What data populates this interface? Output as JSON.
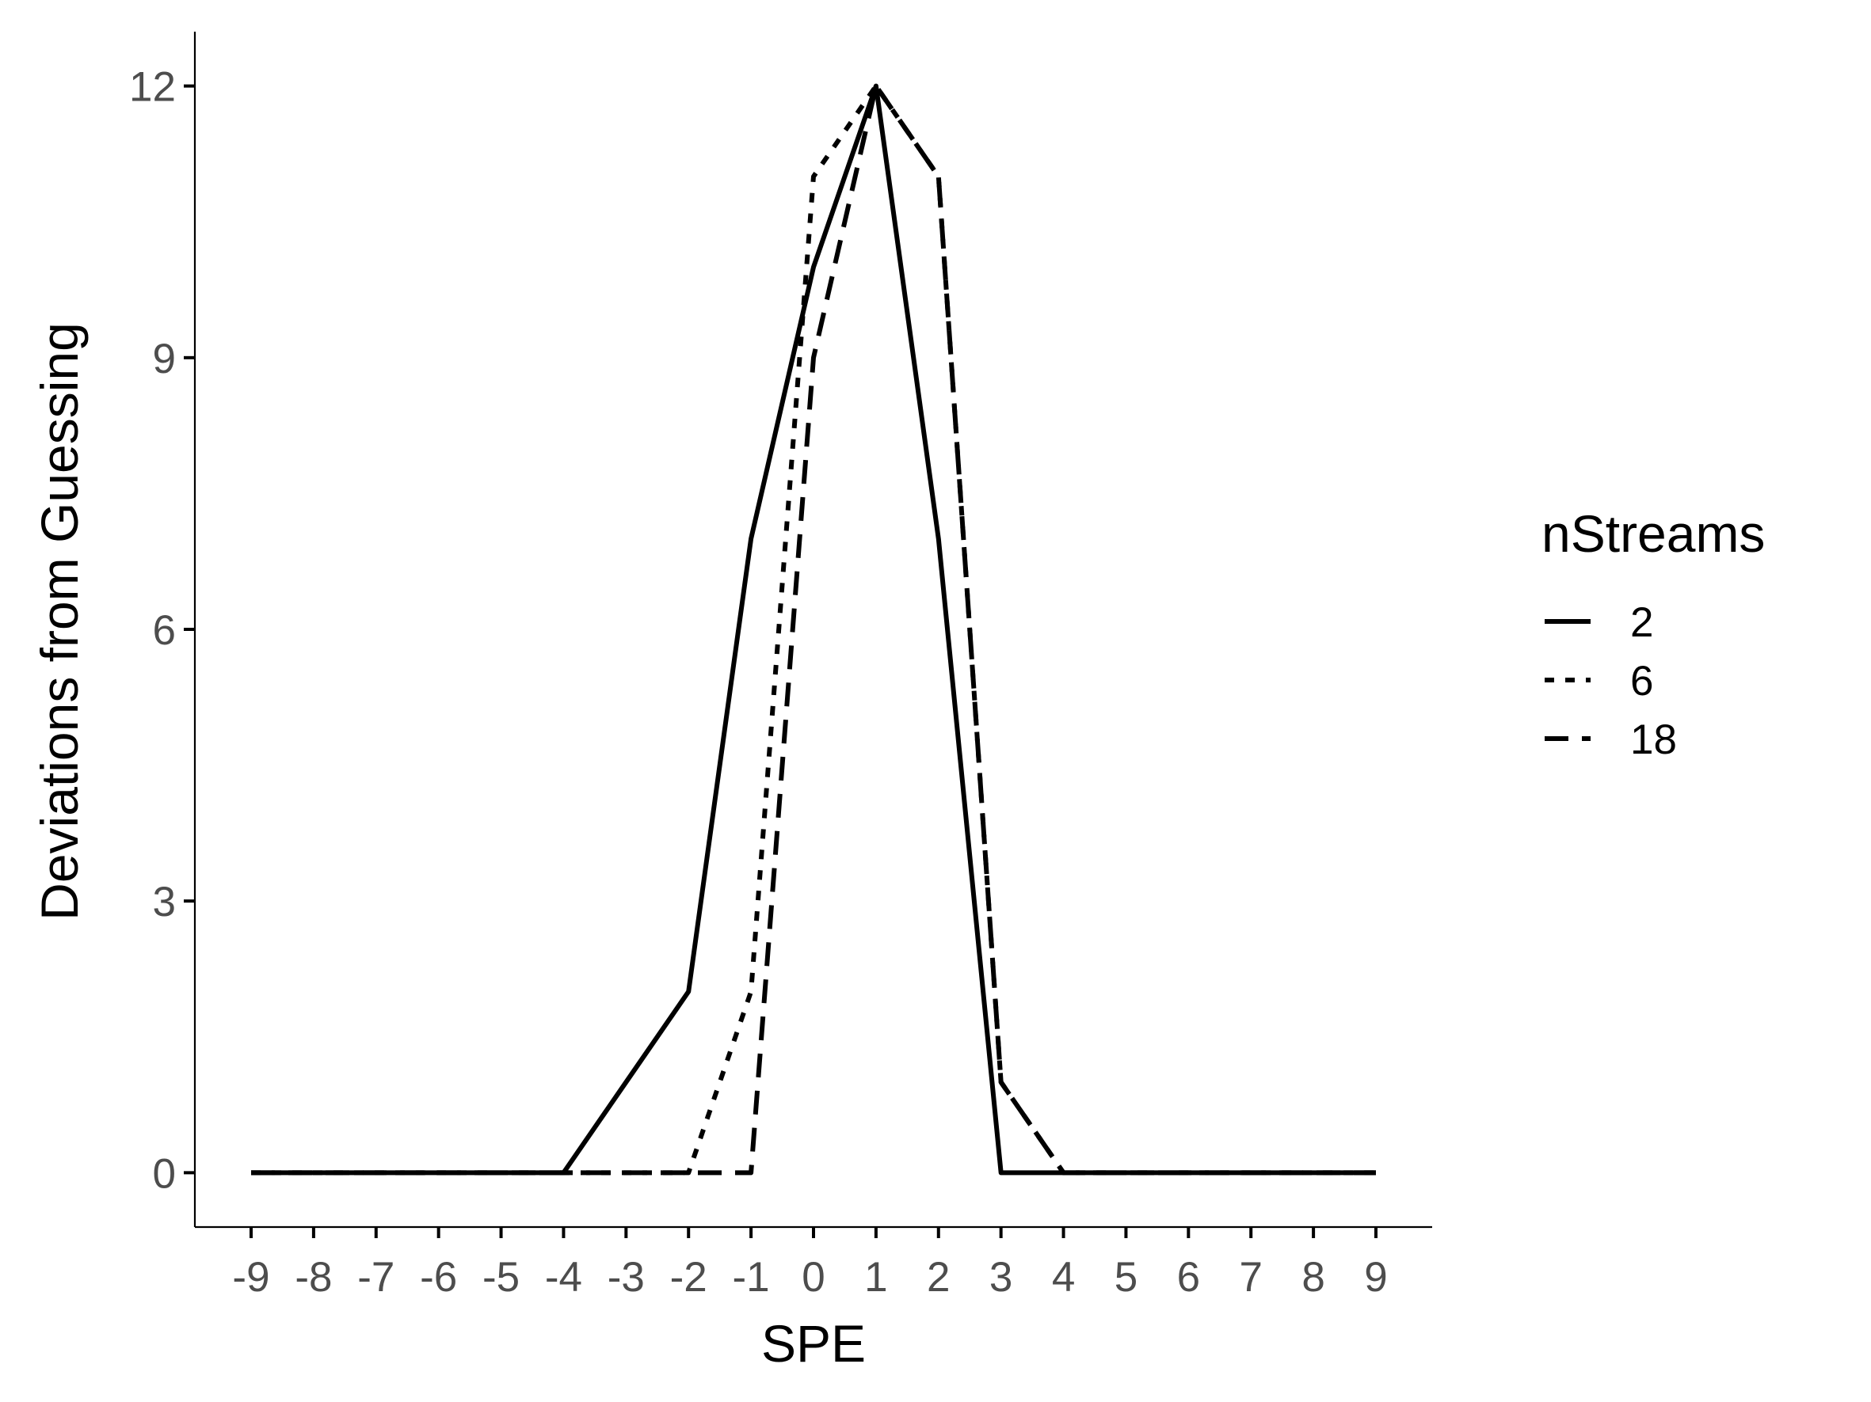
{
  "chart_data": {
    "type": "line",
    "xlabel": "SPE",
    "ylabel": "Deviations from Guessing",
    "x": [
      -9,
      -8,
      -7,
      -6,
      -5,
      -4,
      -3,
      -2,
      -1,
      0,
      1,
      2,
      3,
      4,
      5,
      6,
      7,
      8,
      9
    ],
    "x_tick_labels": [
      "-9",
      "-8",
      "-7",
      "-6",
      "-5",
      "-4",
      "-3",
      "-2",
      "-1",
      "0",
      "1",
      "2",
      "3",
      "4",
      "5",
      "6",
      "7",
      "8",
      "9"
    ],
    "y_ticks": [
      0,
      3,
      6,
      9,
      12
    ],
    "y_tick_labels": [
      "0",
      "3",
      "6",
      "9",
      "12"
    ],
    "xlim": [
      -9.9,
      9.9
    ],
    "ylim": [
      -0.6,
      12.6
    ],
    "grid": false,
    "legend": {
      "title": "nStreams",
      "placement": "right"
    },
    "series": [
      {
        "name": "2",
        "linestyle": "solid",
        "color": "#000000",
        "values": [
          0,
          0,
          0,
          0,
          0,
          0,
          1,
          2,
          7,
          10,
          12,
          7,
          0,
          0,
          0,
          0,
          0,
          0,
          0
        ]
      },
      {
        "name": "6",
        "linestyle": "dotted",
        "color": "#000000",
        "values": [
          0,
          0,
          0,
          0,
          0,
          0,
          0,
          0,
          2,
          11,
          12,
          11,
          1,
          0,
          0,
          0,
          0,
          0,
          0
        ]
      },
      {
        "name": "18",
        "linestyle": "dashed",
        "color": "#000000",
        "values": [
          0,
          0,
          0,
          0,
          0,
          0,
          0,
          0,
          0,
          9,
          12,
          11,
          1,
          0,
          0,
          0,
          0,
          0,
          0
        ]
      }
    ]
  }
}
